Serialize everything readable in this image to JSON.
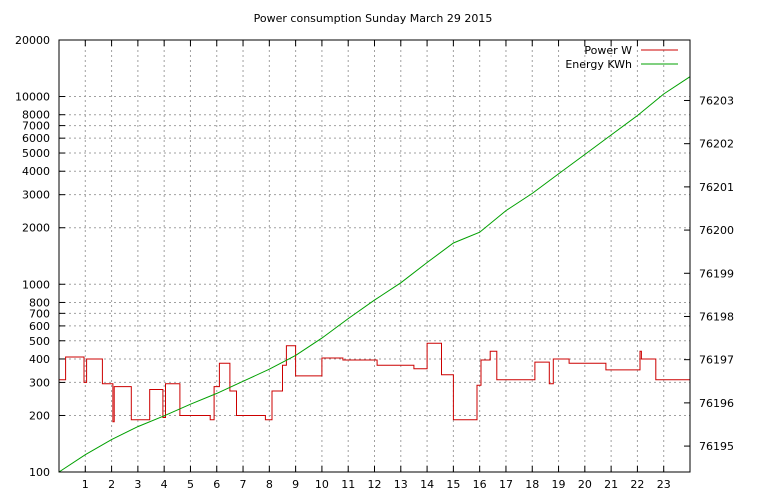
{
  "chart_data": {
    "type": "line",
    "title": "Power consumption Sunday March 29 2015",
    "grid": true,
    "legend_position": "top-right",
    "x": {
      "range": [
        0,
        24
      ],
      "ticks": [
        1,
        2,
        3,
        4,
        5,
        6,
        7,
        8,
        9,
        10,
        11,
        12,
        13,
        14,
        15,
        16,
        17,
        18,
        19,
        20,
        21,
        22,
        23
      ],
      "tick_labels": [
        "1",
        "2",
        "3",
        "4",
        "5",
        "6",
        "7",
        "8",
        "9",
        "10",
        "11",
        "12",
        "13",
        "14",
        "15",
        "16",
        "17",
        "18",
        "19",
        "20",
        "21",
        "22",
        "23"
      ]
    },
    "y_left": {
      "scale": "log",
      "range": [
        100,
        20000
      ],
      "ticks": [
        100,
        200,
        300,
        400,
        500,
        600,
        700,
        800,
        1000,
        2000,
        3000,
        4000,
        5000,
        6000,
        7000,
        8000,
        10000,
        20000
      ],
      "tick_labels": [
        "100",
        "200",
        "300",
        "400",
        "500",
        "600",
        "700",
        "800",
        "1000",
        "2000",
        "3000",
        "4000",
        "5000",
        "6000",
        "7000",
        "8000",
        "10000",
        "20000"
      ]
    },
    "y_right": {
      "scale": "linear",
      "range": [
        76194.4,
        76204.4
      ],
      "ticks": [
        76195,
        76196,
        76197,
        76198,
        76199,
        76200,
        76201,
        76202,
        76203
      ],
      "tick_labels": [
        "76195",
        "76196",
        "76197",
        "76198",
        "76199",
        "76200",
        "76201",
        "76202",
        "76203"
      ]
    },
    "series": [
      {
        "name": "Power W",
        "axis": "left",
        "color": "#cc0000",
        "step": true,
        "points": [
          [
            0.0,
            310
          ],
          [
            0.25,
            410
          ],
          [
            0.95,
            300
          ],
          [
            1.05,
            400
          ],
          [
            1.65,
            295
          ],
          [
            2.05,
            185
          ],
          [
            2.1,
            285
          ],
          [
            2.75,
            190
          ],
          [
            3.45,
            275
          ],
          [
            3.95,
            195
          ],
          [
            4.05,
            295
          ],
          [
            4.6,
            200
          ],
          [
            5.75,
            190
          ],
          [
            5.9,
            285
          ],
          [
            6.1,
            380
          ],
          [
            6.5,
            270
          ],
          [
            6.75,
            200
          ],
          [
            7.85,
            190
          ],
          [
            8.1,
            270
          ],
          [
            8.5,
            370
          ],
          [
            8.65,
            470
          ],
          [
            9.0,
            325
          ],
          [
            10.0,
            405
          ],
          [
            10.8,
            395
          ],
          [
            12.1,
            370
          ],
          [
            13.5,
            355
          ],
          [
            14.0,
            485
          ],
          [
            14.55,
            330
          ],
          [
            15.0,
            190
          ],
          [
            15.9,
            290
          ],
          [
            16.05,
            395
          ],
          [
            16.4,
            440
          ],
          [
            16.65,
            310
          ],
          [
            18.1,
            385
          ],
          [
            18.65,
            295
          ],
          [
            18.8,
            400
          ],
          [
            19.4,
            380
          ],
          [
            20.8,
            350
          ],
          [
            22.1,
            440
          ],
          [
            22.15,
            400
          ],
          [
            22.7,
            310
          ],
          [
            24.0,
            310
          ]
        ]
      },
      {
        "name": "Energy KWh",
        "axis": "right",
        "color": "#00a000",
        "step": false,
        "points": [
          [
            0.0,
            76194.4
          ],
          [
            1.0,
            76194.8
          ],
          [
            2.0,
            76195.15
          ],
          [
            3.0,
            76195.45
          ],
          [
            4.0,
            76195.7
          ],
          [
            5.0,
            76195.97
          ],
          [
            6.0,
            76196.22
          ],
          [
            7.0,
            76196.5
          ],
          [
            8.0,
            76196.78
          ],
          [
            9.0,
            76197.1
          ],
          [
            10.0,
            76197.5
          ],
          [
            11.0,
            76197.95
          ],
          [
            12.0,
            76198.38
          ],
          [
            13.0,
            76198.78
          ],
          [
            14.0,
            76199.25
          ],
          [
            15.0,
            76199.7
          ],
          [
            16.0,
            76199.95
          ],
          [
            17.0,
            76200.45
          ],
          [
            18.0,
            76200.85
          ],
          [
            19.0,
            76201.3
          ],
          [
            20.0,
            76201.75
          ],
          [
            21.0,
            76202.2
          ],
          [
            22.0,
            76202.65
          ],
          [
            23.0,
            76203.15
          ],
          [
            24.0,
            76203.55
          ]
        ]
      }
    ]
  }
}
